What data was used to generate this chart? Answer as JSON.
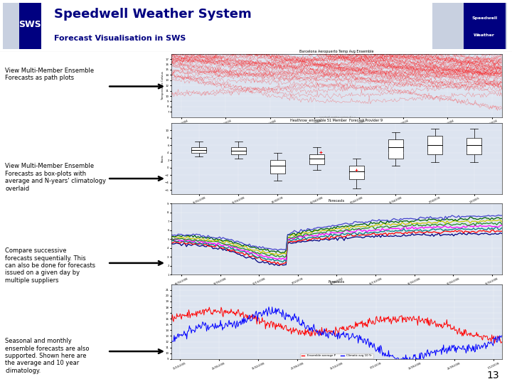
{
  "title_main": "Speedwell Weather System",
  "title_sub": "Forecast Visualisation in SWS",
  "sws_box_color": "#000080",
  "title_color": "#000080",
  "bg_color": "#ffffff",
  "bullet_texts": [
    "View Multi-Member Ensemble\nForecasts as path plots",
    "View Multi-Member Ensemble\nForecasts as box-plots with\naverage and N-years' climatology\noverlaid",
    "Compare successive\nforecasts sequentially. This\ncan also be done for forecasts\nissued on a given day by\nmultiple suppliers",
    "Seasonal and monthly\nensemble forecasts are also\nsupported. Shown here are\nthe average and 10 year\nclimatology."
  ],
  "page_number": "13",
  "chart_bg": "#dde4f0"
}
